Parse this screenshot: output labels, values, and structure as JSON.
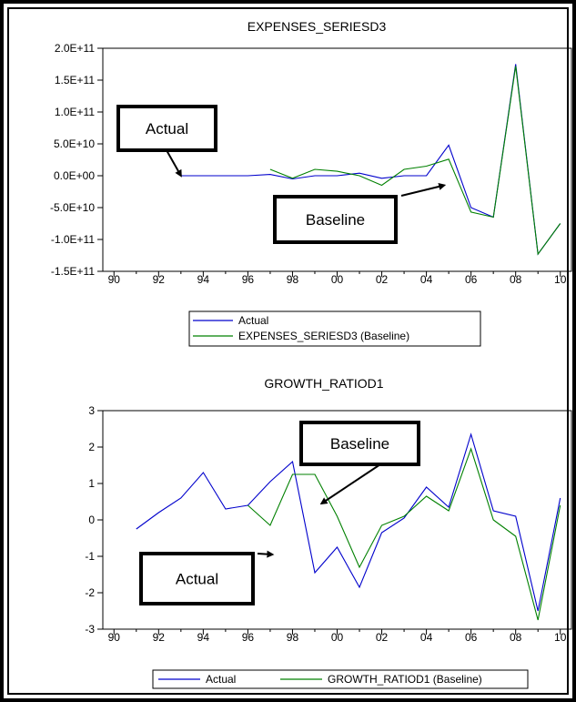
{
  "chart_data": [
    {
      "type": "line",
      "title": "EXPENSES_SERIESD3",
      "xlabel": "",
      "ylabel": "",
      "x_ticks": [
        "90",
        "92",
        "94",
        "96",
        "98",
        "00",
        "02",
        "04",
        "06",
        "08",
        "10"
      ],
      "y_ticks": [
        "-1.5E+11",
        "-1.0E+11",
        "-5.0E+10",
        "0.0E+00",
        "5.0E+10",
        "1.0E+11",
        "1.5E+11",
        "2.0E+11"
      ],
      "ylim": [
        -150000000000.0,
        200000000000.0
      ],
      "grid": false,
      "legend_position": "bottom",
      "series": [
        {
          "name": "Actual",
          "color": "#0000cc",
          "x": [
            1993,
            1994,
            1995,
            1996,
            1997,
            1998,
            1999,
            2000,
            2001,
            2002,
            2003,
            2004,
            2005,
            2006,
            2007,
            2008,
            2009,
            2010
          ],
          "values": [
            0,
            0,
            0,
            0,
            2000000000.0,
            -5000000000.0,
            0,
            0,
            4000000000.0,
            -4000000000.0,
            0,
            0,
            48000000000.0,
            -50000000000.0,
            -65000000000.0,
            175000000000.0,
            -123000000000.0,
            -75000000000.0
          ]
        },
        {
          "name": "EXPENSES_SERIESD3 (Baseline)",
          "color": "#008000",
          "x": [
            1997,
            1998,
            1999,
            2000,
            2001,
            2002,
            2003,
            2004,
            2005,
            2006,
            2007,
            2008,
            2009,
            2010
          ],
          "values": [
            10000000000.0,
            -4000000000.0,
            10000000000.0,
            7000000000.0,
            0,
            -15000000000.0,
            10000000000.0,
            15000000000.0,
            26000000000.0,
            -57000000000.0,
            -65000000000.0,
            172000000000.0,
            -123000000000.0,
            -75000000000.0
          ]
        }
      ],
      "annotations": [
        {
          "label": "Actual",
          "target_x": 1993,
          "target_y": 0
        },
        {
          "label": "Baseline",
          "target_x": 2004.8,
          "target_y": -15000000000.0
        }
      ]
    },
    {
      "type": "line",
      "title": "GROWTH_RATIOD1",
      "xlabel": "",
      "ylabel": "",
      "x_ticks": [
        "90",
        "92",
        "94",
        "96",
        "98",
        "00",
        "02",
        "04",
        "06",
        "08",
        "10"
      ],
      "y_ticks": [
        "-3",
        "-2",
        "-1",
        "0",
        "1",
        "2",
        "3"
      ],
      "ylim": [
        -3,
        3
      ],
      "grid": false,
      "legend_position": "bottom",
      "series": [
        {
          "name": "Actual",
          "color": "#0000cc",
          "x": [
            1991,
            1992,
            1993,
            1994,
            1995,
            1996,
            1997,
            1998,
            1999,
            2000,
            2001,
            2002,
            2003,
            2004,
            2005,
            2006,
            2007,
            2008,
            2009,
            2010
          ],
          "values": [
            -0.25,
            0.2,
            0.6,
            1.3,
            0.3,
            0.4,
            1.05,
            1.6,
            -1.45,
            -0.75,
            -1.85,
            -0.35,
            0.05,
            0.9,
            0.35,
            2.35,
            0.25,
            0.1,
            -2.5,
            0.6
          ]
        },
        {
          "name": "GROWTH_RATIOD1 (Baseline)",
          "color": "#008000",
          "x": [
            1996,
            1997,
            1998,
            1999,
            2000,
            2001,
            2002,
            2003,
            2004,
            2005,
            2006,
            2007,
            2008,
            2009,
            2010
          ],
          "values": [
            0.4,
            -0.15,
            1.25,
            1.25,
            0.1,
            -1.3,
            -0.15,
            0.1,
            0.65,
            0.25,
            1.95,
            0.0,
            -0.45,
            -2.75,
            0.4
          ]
        }
      ],
      "annotations": [
        {
          "label": "Baseline",
          "target_x": 1999.3,
          "target_y": 0.45
        },
        {
          "label": "Actual",
          "target_x": 1997.1,
          "target_y": -0.95
        }
      ]
    }
  ]
}
